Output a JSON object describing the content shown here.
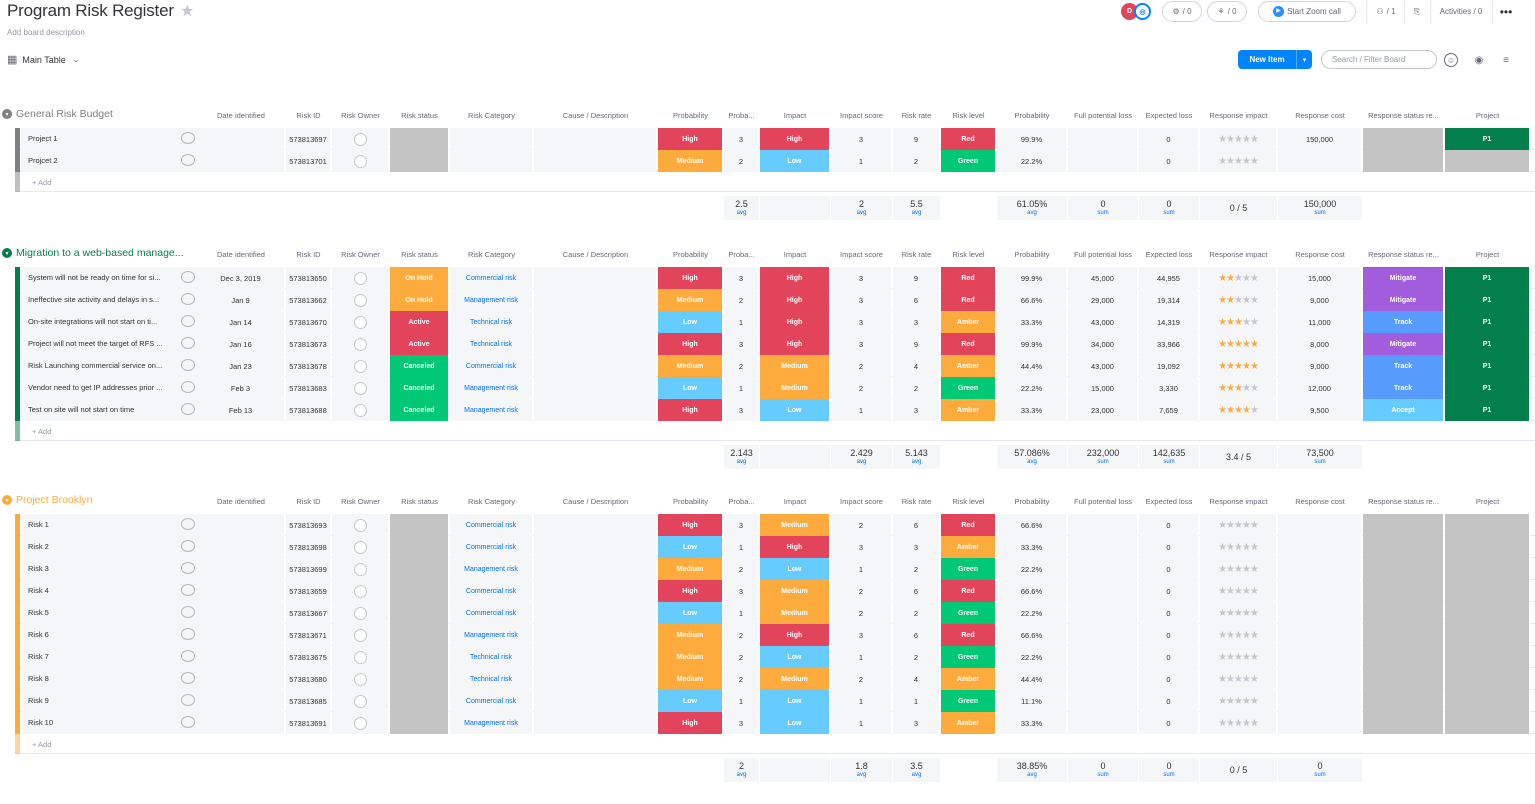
{
  "board": {
    "title": "Program Risk Register",
    "description": "Add board description"
  },
  "topbar": {
    "avatar1": "D",
    "search_count": "/ 0",
    "integrate_count": "/ 0",
    "zoom_label": "Start Zoom call",
    "members_count": "/ 1",
    "activities_label": "Activities / 0"
  },
  "toolbar": {
    "view_label": "Main Table",
    "new_item": "New Item",
    "search_placeholder": "Search / Filter Board"
  },
  "columns": [
    "Date identified",
    "Risk ID",
    "Risk Owner",
    "Risk status",
    "Risk Category",
    "Cause / Description",
    "Probability",
    "Proba...",
    "Impact",
    "Impact score",
    "Risk rate",
    "Risk level",
    "Probability",
    "Full potential loss",
    "Expected loss",
    "Response impact",
    "Response cost",
    "Response status re...",
    "Project"
  ],
  "add_label": "+ Add",
  "colors": {
    "high": "#e2445c",
    "medium": "#fdab3d",
    "low": "#66ccff",
    "green": "#00c875",
    "amber": "#fdab3d",
    "red": "#e2445c",
    "hold": "#fdab3d",
    "active": "#e2445c",
    "canceled": "#00c875",
    "mitigate": "#a25ddc",
    "track": "#579bfc",
    "accept": "#66ccff",
    "p1": "#037f4c",
    "gray": "#c4c4c4"
  },
  "groups": [
    {
      "title": "General Risk Budget",
      "color": "#808080",
      "rows": [
        {
          "name": "Project 1",
          "date": "",
          "id": "573813697",
          "status": "",
          "category": "",
          "prob": "High",
          "probn": "3",
          "impact": "High",
          "iscore": "3",
          "rate": "9",
          "level": "Red",
          "pct": "99.9%",
          "fpl": "",
          "el": "0",
          "stars": 0,
          "cost": "150,000",
          "resp": "",
          "project": "P1"
        },
        {
          "name": "Projcet 2",
          "date": "",
          "id": "573813701",
          "status": "",
          "category": "",
          "prob": "Medium",
          "probn": "2",
          "impact": "Low",
          "iscore": "1",
          "rate": "2",
          "level": "Green",
          "pct": "22.2%",
          "fpl": "",
          "el": "0",
          "stars": 0,
          "cost": "",
          "resp": "",
          "project": ""
        }
      ],
      "summary": {
        "probn": "2.5",
        "iscore": "2",
        "rate": "5.5",
        "pct": "61.05%",
        "fpl": "0",
        "el": "0",
        "resp_impact": "0 / 5",
        "cost": "150,000"
      }
    },
    {
      "title": "Migration to a web-based manage...",
      "color": "#037f4c",
      "rows": [
        {
          "name": "System will not be ready on time for si...",
          "date": "Dec 3, 2019",
          "id": "573813650",
          "status": "On Hold",
          "category": "Commercial risk",
          "prob": "High",
          "probn": "3",
          "impact": "High",
          "iscore": "3",
          "rate": "9",
          "level": "Red",
          "pct": "99.9%",
          "fpl": "45,000",
          "el": "44,955",
          "stars": 2,
          "cost": "15,000",
          "resp": "Mitigate",
          "project": "P1"
        },
        {
          "name": "Ineffective site activity and delays in s...",
          "date": "Jan 9",
          "id": "573813662",
          "status": "On Hold",
          "category": "Management risk",
          "prob": "Medium",
          "probn": "2",
          "impact": "High",
          "iscore": "3",
          "rate": "6",
          "level": "Red",
          "pct": "66.6%",
          "fpl": "29,000",
          "el": "19,314",
          "stars": 2,
          "cost": "9,000",
          "resp": "Mitigate",
          "project": "P1"
        },
        {
          "name": "On-site integrations will not start on ti...",
          "date": "Jan 14",
          "id": "573813670",
          "status": "Active",
          "category": "Technical risk",
          "prob": "Low",
          "probn": "1",
          "impact": "High",
          "iscore": "3",
          "rate": "3",
          "level": "Amber",
          "pct": "33.3%",
          "fpl": "43,000",
          "el": "14,319",
          "stars": 3,
          "cost": "11,000",
          "resp": "Track",
          "project": "P1"
        },
        {
          "name": "Project will not meet the target of RFS ...",
          "date": "Jan 16",
          "id": "573813673",
          "status": "Active",
          "category": "Technical risk",
          "prob": "High",
          "probn": "3",
          "impact": "High",
          "iscore": "3",
          "rate": "9",
          "level": "Red",
          "pct": "99.9%",
          "fpl": "34,000",
          "el": "33,966",
          "stars": 5,
          "cost": "8,000",
          "resp": "Mitigate",
          "project": "P1"
        },
        {
          "name": "Risk Launching commercial service on...",
          "date": "Jan 23",
          "id": "573813678",
          "status": "Canceled",
          "category": "Commercial risk",
          "prob": "Medium",
          "probn": "2",
          "impact": "Medium",
          "iscore": "2",
          "rate": "4",
          "level": "Amber",
          "pct": "44.4%",
          "fpl": "43,000",
          "el": "19,092",
          "stars": 5,
          "cost": "9,000",
          "resp": "Track",
          "project": "P1"
        },
        {
          "name": "Vendor need to get IP addresses prior ...",
          "date": "Feb 3",
          "id": "573813683",
          "status": "Canceled",
          "category": "Management risk",
          "prob": "Low",
          "probn": "1",
          "impact": "Medium",
          "iscore": "2",
          "rate": "2",
          "level": "Green",
          "pct": "22.2%",
          "fpl": "15,000",
          "el": "3,330",
          "stars": 3,
          "cost": "12,000",
          "resp": "Track",
          "project": "P1"
        },
        {
          "name": "Test on site will not start on time",
          "date": "Feb 13",
          "id": "573813688",
          "status": "Canceled",
          "category": "Management risk",
          "prob": "High",
          "probn": "3",
          "impact": "Low",
          "iscore": "1",
          "rate": "3",
          "level": "Amber",
          "pct": "33.3%",
          "fpl": "23,000",
          "el": "7,659",
          "stars": 4,
          "cost": "9,500",
          "resp": "Accept",
          "project": "P1"
        }
      ],
      "summary": {
        "probn": "2.143",
        "iscore": "2.429",
        "rate": "5.143",
        "pct": "57.086%",
        "fpl": "232,000",
        "el": "142,635",
        "resp_impact": "3.4 / 5",
        "cost": "73,500"
      }
    },
    {
      "title": "Project Brooklyn",
      "color": "#fdab3d",
      "rows": [
        {
          "name": "Risk 1",
          "date": "",
          "id": "573813693",
          "status": "",
          "category": "Commercial risk",
          "prob": "High",
          "probn": "3",
          "impact": "Medium",
          "iscore": "2",
          "rate": "6",
          "level": "Red",
          "pct": "66.6%",
          "fpl": "",
          "el": "0",
          "stars": 0,
          "cost": "",
          "resp": "",
          "project": ""
        },
        {
          "name": "Risk 2",
          "date": "",
          "id": "573813698",
          "status": "",
          "category": "Commercial risk",
          "prob": "Low",
          "probn": "1",
          "impact": "High",
          "iscore": "3",
          "rate": "3",
          "level": "Amber",
          "pct": "33.3%",
          "fpl": "",
          "el": "0",
          "stars": 0,
          "cost": "",
          "resp": "",
          "project": ""
        },
        {
          "name": "Risk 3",
          "date": "",
          "id": "573813699",
          "status": "",
          "category": "Management risk",
          "prob": "Medium",
          "probn": "2",
          "impact": "Low",
          "iscore": "1",
          "rate": "2",
          "level": "Green",
          "pct": "22.2%",
          "fpl": "",
          "el": "0",
          "stars": 0,
          "cost": "",
          "resp": "",
          "project": ""
        },
        {
          "name": "Risk 4",
          "date": "",
          "id": "573813659",
          "status": "",
          "category": "Commercial risk",
          "prob": "High",
          "probn": "3",
          "impact": "Medium",
          "iscore": "2",
          "rate": "6",
          "level": "Red",
          "pct": "66.6%",
          "fpl": "",
          "el": "0",
          "stars": 0,
          "cost": "",
          "resp": "",
          "project": ""
        },
        {
          "name": "Risk 5",
          "date": "",
          "id": "573813667",
          "status": "",
          "category": "Commercial risk",
          "prob": "Low",
          "probn": "1",
          "impact": "Medium",
          "iscore": "2",
          "rate": "2",
          "level": "Green",
          "pct": "22.2%",
          "fpl": "",
          "el": "0",
          "stars": 0,
          "cost": "",
          "resp": "",
          "project": ""
        },
        {
          "name": "Risk 6",
          "date": "",
          "id": "573813671",
          "status": "",
          "category": "Management risk",
          "prob": "Medium",
          "probn": "2",
          "impact": "High",
          "iscore": "3",
          "rate": "6",
          "level": "Red",
          "pct": "66.6%",
          "fpl": "",
          "el": "0",
          "stars": 0,
          "cost": "",
          "resp": "",
          "project": ""
        },
        {
          "name": "Risk 7",
          "date": "",
          "id": "573813675",
          "status": "",
          "category": "Technical risk",
          "prob": "Medium",
          "probn": "2",
          "impact": "Low",
          "iscore": "1",
          "rate": "2",
          "level": "Green",
          "pct": "22.2%",
          "fpl": "",
          "el": "0",
          "stars": 0,
          "cost": "",
          "resp": "",
          "project": ""
        },
        {
          "name": "Risk 8",
          "date": "",
          "id": "573813680",
          "status": "",
          "category": "Technical risk",
          "prob": "Medium",
          "probn": "2",
          "impact": "Medium",
          "iscore": "2",
          "rate": "4",
          "level": "Amber",
          "pct": "44.4%",
          "fpl": "",
          "el": "0",
          "stars": 0,
          "cost": "",
          "resp": "",
          "project": ""
        },
        {
          "name": "Risk 9",
          "date": "",
          "id": "573813685",
          "status": "",
          "category": "Commercial risk",
          "prob": "Low",
          "probn": "1",
          "impact": "Low",
          "iscore": "1",
          "rate": "1",
          "level": "Green",
          "pct": "11.1%",
          "fpl": "",
          "el": "0",
          "stars": 0,
          "cost": "",
          "resp": "",
          "project": ""
        },
        {
          "name": "Risk 10",
          "date": "",
          "id": "573813691",
          "status": "",
          "category": "Management risk",
          "prob": "High",
          "probn": "3",
          "impact": "Low",
          "iscore": "1",
          "rate": "3",
          "level": "Amber",
          "pct": "33.3%",
          "fpl": "",
          "el": "0",
          "stars": 0,
          "cost": "",
          "resp": "",
          "project": ""
        }
      ],
      "summary": {
        "probn": "2",
        "iscore": "1.8",
        "rate": "3.5",
        "pct": "38.85%",
        "fpl": "0",
        "el": "0",
        "resp_impact": "0 / 5",
        "cost": "0"
      }
    }
  ],
  "summary_labels": {
    "avg": "avg",
    "sum": "sum"
  }
}
